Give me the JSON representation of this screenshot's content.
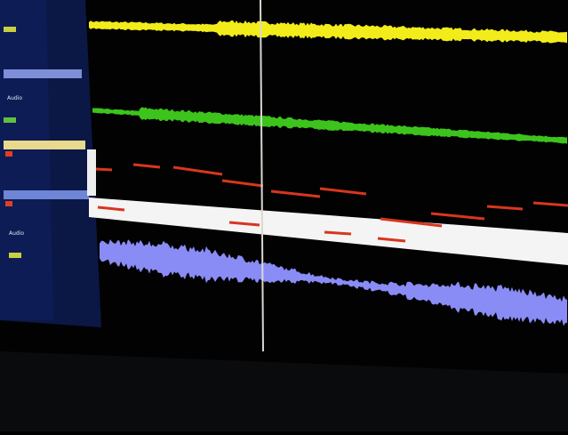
{
  "tracks": [
    {
      "label": "Audio"
    },
    {
      "label": "Audio"
    }
  ]
}
